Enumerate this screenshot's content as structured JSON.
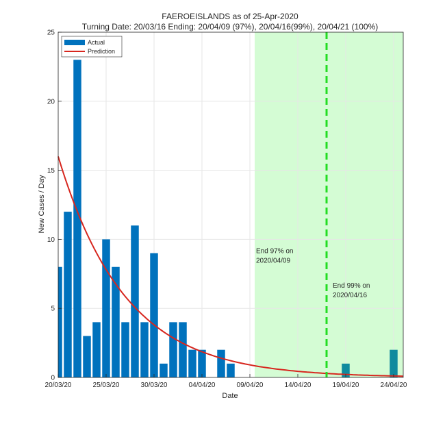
{
  "chart_data": {
    "type": "bar",
    "title": "FAEROEISLANDS as of 25-Apr-2020",
    "subtitle": "Turning Date: 20/03/16  Ending: 20/04/09 (97%), 20/04/16(99%), 20/04/21 (100%)",
    "xlabel": "Date",
    "ylabel": "New Cases / Day",
    "xlim": [
      0,
      36
    ],
    "ylim": [
      0,
      25
    ],
    "yticks": [
      0,
      5,
      10,
      15,
      20,
      25
    ],
    "xticks": [
      {
        "day": 0,
        "label": "20/03/20"
      },
      {
        "day": 5,
        "label": "25/03/20"
      },
      {
        "day": 10,
        "label": "30/03/20"
      },
      {
        "day": 15,
        "label": "04/04/20"
      },
      {
        "day": 20,
        "label": "09/04/20"
      },
      {
        "day": 25,
        "label": "14/04/20"
      },
      {
        "day": 30,
        "label": "19/04/20"
      },
      {
        "day": 35,
        "label": "24/04/20"
      }
    ],
    "grid": true,
    "legend": {
      "position": "top-left",
      "entries": [
        {
          "label": "Actual",
          "kind": "patch",
          "color": "#0072BD"
        },
        {
          "label": "Prediction",
          "kind": "line",
          "color": "#D7261E"
        }
      ]
    },
    "series": [
      {
        "name": "Actual",
        "kind": "bar",
        "day_offset": 0,
        "values": [
          8,
          12,
          23,
          3,
          4,
          10,
          8,
          4,
          11,
          4,
          9,
          1,
          4,
          4,
          2,
          2,
          0,
          2,
          1,
          0,
          0,
          0,
          0,
          0,
          0,
          0,
          0,
          0,
          0,
          0,
          1,
          0,
          0,
          0,
          0,
          2
        ]
      },
      {
        "name": "Prediction",
        "kind": "line",
        "day_start": 0,
        "day_end": 36,
        "y0": 16,
        "decay_rate": 0.1435
      }
    ],
    "shaded_region": {
      "from_day": 20.5,
      "to_day": 36,
      "color": "#D4FCD4"
    },
    "vertical_lines": [
      {
        "day": 28,
        "style": "dashed",
        "color": "#22DD22"
      }
    ],
    "annotations": [
      {
        "day": 20.5,
        "y": 9.0,
        "text": "End 97% on",
        "text2": "2020/04/09"
      },
      {
        "day": 28.5,
        "y": 6.5,
        "text": "End 99% on",
        "text2": "2020/04/16"
      }
    ],
    "colors": {
      "bar": "#0072BD",
      "bar_in_region": "#0F8A9E",
      "line": "#D7261E",
      "axes": "#262626",
      "grid": "#E6E6E6"
    }
  }
}
